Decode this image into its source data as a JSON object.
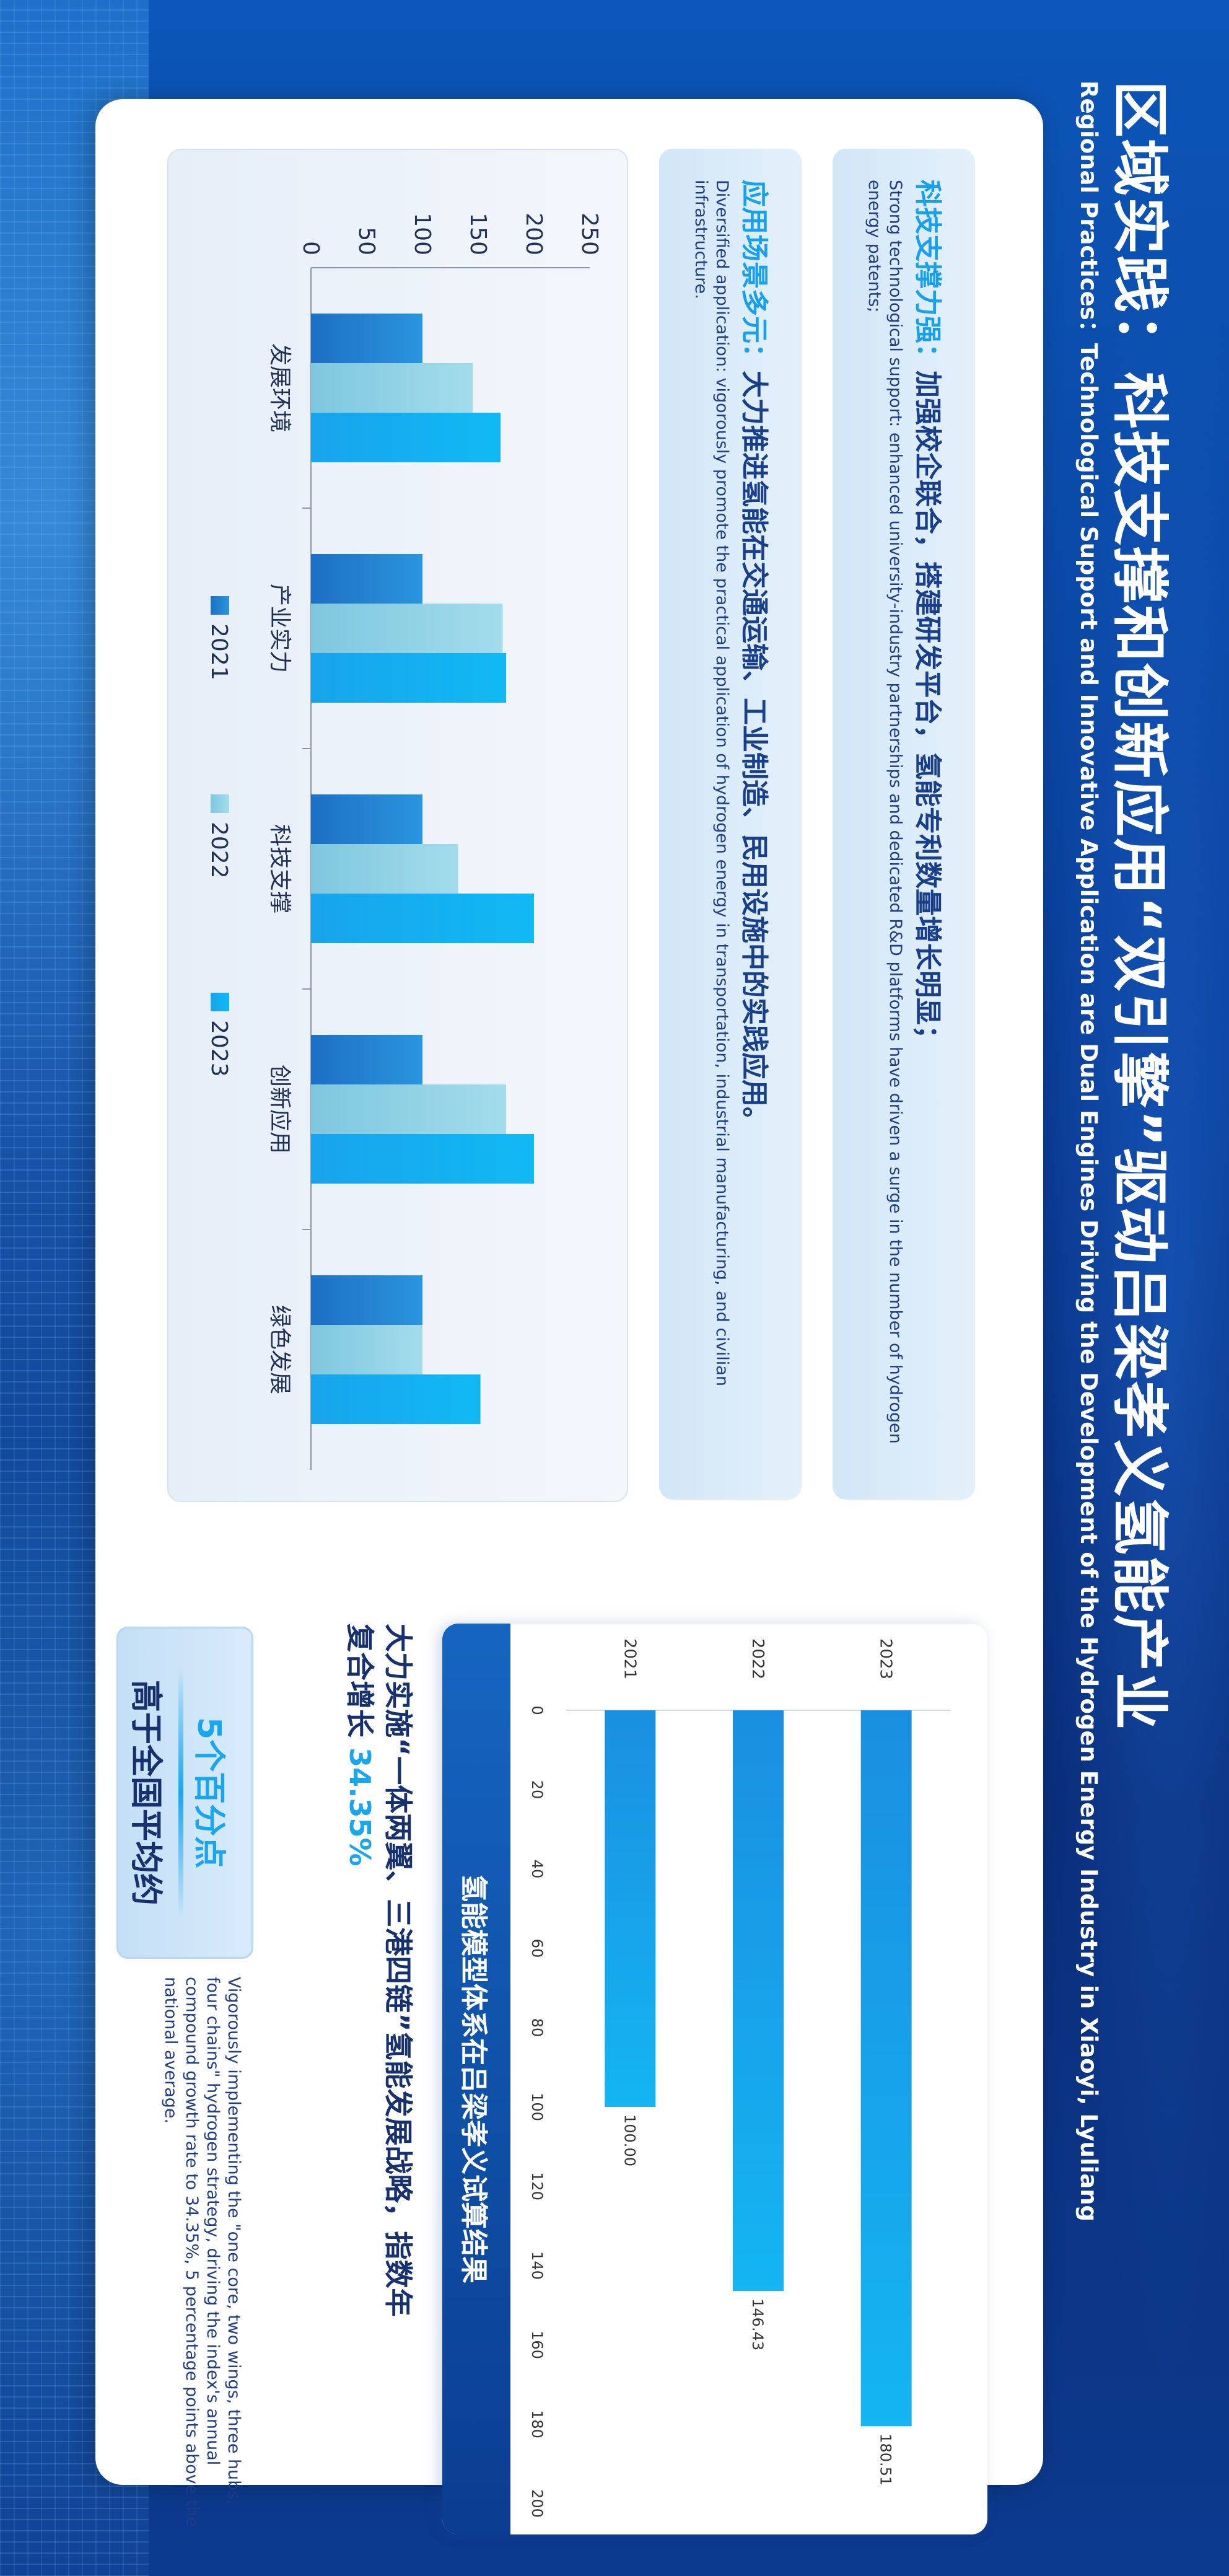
{
  "title": "区域实践：科技支撑和创新应用“双引擎”驱动吕梁孝义氢能产业",
  "subtitle": "Regional Practices：Technological Support and Innovative Application are Dual Engines Driving the Development of the Hydrogen Energy Industry in Xiaoyi, Lyuliang",
  "tech_card": {
    "heading_highlight": "科技支撑力强：",
    "heading_rest": "加强校企联合，搭建研发平台，氢能专利数量增长明显；",
    "text": "Strong technological support: enhanced university-industry partnerships and dedicated R&D platforms have driven a surge in the number of hydrogen energy patents;"
  },
  "app_card": {
    "heading_highlight": "应用场景多元：",
    "heading_rest": "大力推进氢能在交通运输、工业制造、民用设施中的实践应用。",
    "text": "Diversified application: vigorously promote the practical application of hydrogen energy in transportation, industrial manufacturing, and civilian infrastructure."
  },
  "strategy": {
    "line1": "大力实施“一体两翼、三港四链”氢能发展战略，指数年",
    "line2_pre": "复合增长",
    "line2_hl": "34.35%",
    "text": "Vigorously implementing the \"one core, two wings, three hubs, four chains\" hydrogen strategy, driving the index's annual compound growth rate to 34.35%, 5 percentage points above the national average."
  },
  "badge": {
    "top": "5个百分点",
    "bottom": "高于全国平均约"
  },
  "colors": {
    "y2021": "#1f7fcc",
    "y2022": "#7fcbe0",
    "y2023": "#14aaee",
    "accent": "#19a6ee",
    "navy": "#17306e"
  },
  "chart_data": [
    {
      "type": "bar",
      "orientation": "horizontal",
      "title": "氢能模型体系在吕梁孝义试算结果",
      "categories": [
        "2023",
        "2022",
        "2021"
      ],
      "values": [
        180.51,
        146.43,
        100.0
      ],
      "value_labels": [
        "180.51",
        "146.43",
        "100.00"
      ],
      "xlim": [
        0,
        200
      ],
      "ticks": [
        "0",
        "20",
        "40",
        "60",
        "80",
        "100",
        "120",
        "140",
        "160",
        "180",
        "200"
      ],
      "grid": false
    },
    {
      "type": "bar",
      "orientation": "vertical",
      "categories": [
        "发展环境",
        "产业实力",
        "科技支撑",
        "创新应用",
        "绿色发展"
      ],
      "series": [
        {
          "name": "2021",
          "values": [
            100,
            100,
            100,
            100,
            100
          ]
        },
        {
          "name": "2022",
          "values": [
            145,
            172,
            132,
            175,
            100
          ]
        },
        {
          "name": "2023",
          "values": [
            170,
            175,
            200,
            200,
            152
          ]
        }
      ],
      "ylim": [
        0,
        250
      ],
      "ticks": [
        "0",
        "50",
        "100",
        "150",
        "200",
        "250"
      ],
      "legend_position": "bottom",
      "grid": false
    }
  ]
}
